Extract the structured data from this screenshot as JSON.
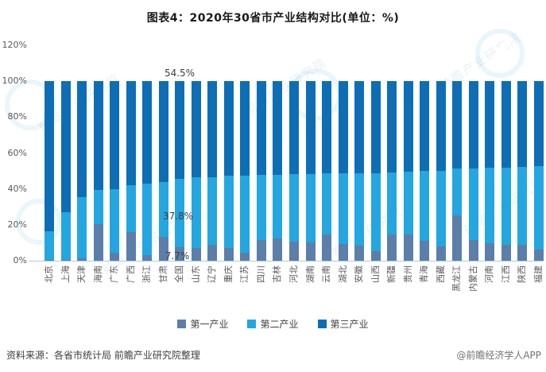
{
  "title": "图表4：2020年30省市产业结构对比(单位：%)",
  "footer": {
    "source_note": "资料来源：各省市统计局 前瞻产业研究院整理",
    "brand": "@前瞻经济学人APP"
  },
  "watermark": {
    "text": "前瞻产业研究院"
  },
  "colors": {
    "primary_industry": "#5b7fa9",
    "secondary_industry": "#24a6e0",
    "tertiary_industry": "#0d6eb6",
    "axis_line": "#aecbe3",
    "tick_text": "#595959",
    "data_label_text": "#3f3f3f",
    "title_text": "#1a1a1a"
  },
  "y_axis": {
    "ticks": [
      "120%",
      "100%",
      "80%",
      "60%",
      "40%",
      "20%",
      "0%"
    ]
  },
  "legend": [
    "第一产业",
    "第二产业",
    "第三产业"
  ],
  "annotations": [
    {
      "text": "54.5%",
      "series": "第三产业",
      "category": "全国"
    },
    {
      "text": "37.8%",
      "series": "第二产业",
      "category": "全国"
    },
    {
      "text": "7.7%",
      "series": "第一产业",
      "category": "全国"
    }
  ],
  "chart_data": {
    "type": "bar",
    "stacked": true,
    "unit": "%",
    "title": "2020年30省市产业结构对比",
    "xlabel": "",
    "ylabel": "",
    "ylim": [
      0,
      120
    ],
    "grid": false,
    "legend_position": "bottom",
    "categories": [
      "北京",
      "上海",
      "天津",
      "海南",
      "广东",
      "广西",
      "浙江",
      "甘肃",
      "全国",
      "山东",
      "辽宁",
      "重庆",
      "江苏",
      "四川",
      "吉林",
      "河北",
      "湖南",
      "云南",
      "湖北",
      "安徽",
      "山西",
      "新疆",
      "贵州",
      "青海",
      "西藏",
      "黑龙江",
      "内蒙古",
      "河南",
      "江西",
      "陕西",
      "福建"
    ],
    "series": [
      {
        "name": "第一产业",
        "color": "#5b7fa9",
        "values": [
          0.4,
          0.3,
          1.5,
          20.5,
          4.3,
          16.0,
          3.3,
          13.3,
          7.7,
          7.3,
          9.0,
          7.2,
          4.4,
          11.4,
          12.6,
          10.7,
          10.2,
          14.7,
          9.5,
          8.2,
          5.4,
          14.4,
          14.5,
          11.1,
          7.9,
          25.1,
          11.7,
          9.7,
          8.7,
          8.7,
          6.2
        ]
      },
      {
        "name": "第二产业",
        "color": "#24a6e0",
        "values": [
          15.8,
          26.6,
          34.1,
          19.1,
          35.7,
          25.9,
          39.6,
          30.5,
          37.8,
          39.1,
          37.5,
          40.0,
          43.1,
          36.2,
          35.2,
          37.6,
          38.2,
          33.8,
          39.1,
          40.5,
          43.5,
          34.7,
          35.2,
          39.0,
          42.3,
          26.3,
          39.8,
          41.9,
          43.2,
          43.4,
          46.3
        ]
      },
      {
        "name": "第三产业",
        "color": "#0d6eb6",
        "values": [
          83.8,
          73.1,
          64.4,
          60.4,
          60.0,
          58.1,
          57.1,
          56.2,
          54.5,
          53.6,
          53.5,
          52.8,
          52.5,
          52.4,
          52.2,
          51.7,
          51.6,
          51.5,
          51.4,
          51.3,
          51.1,
          50.9,
          50.3,
          49.9,
          49.8,
          48.6,
          48.5,
          48.4,
          48.1,
          47.9,
          47.5
        ]
      }
    ]
  }
}
